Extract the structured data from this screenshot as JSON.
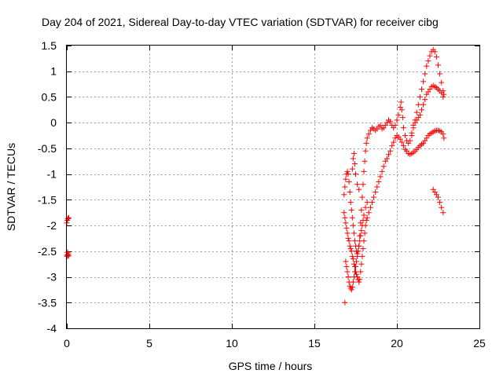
{
  "chart_data": {
    "type": "scatter",
    "title": "Day 204 of 2021, Sidereal Day-to-day VTEC variation (SDTVAR) for receiver cibg",
    "xlabel": "GPS time / hours",
    "ylabel": "SDTVAR / TECUs",
    "xlim": [
      0,
      25
    ],
    "ylim": [
      -4,
      1.5
    ],
    "xticks": [
      0,
      5,
      10,
      15,
      20,
      25
    ],
    "yticks": [
      -4,
      -3.5,
      -3,
      -2.5,
      -2,
      -1.5,
      -1,
      -0.5,
      0,
      0.5,
      1,
      1.5
    ],
    "xtick_labels": [
      "0",
      "5",
      "10",
      "15",
      "20",
      "25"
    ],
    "ytick_labels": [
      "-4",
      "-3.5",
      "-3",
      "-2.5",
      "-2",
      "-1.5",
      "-1",
      "-0.5",
      "0",
      "0.5",
      "1",
      "1.5"
    ],
    "grid": true,
    "legend": "none",
    "marker": "+",
    "color": "#ff0000",
    "series": [
      {
        "points": [
          [
            0.0,
            -1.95
          ],
          [
            0.03,
            -1.9
          ],
          [
            0.06,
            -1.87
          ],
          [
            0.09,
            -1.86
          ],
          [
            0.12,
            -1.85
          ],
          [
            0.0,
            -2.58
          ],
          [
            0.03,
            -2.6
          ],
          [
            0.06,
            -2.57
          ],
          [
            0.09,
            -2.55
          ],
          [
            0.12,
            -2.59
          ],
          [
            0.04,
            -2.52
          ],
          [
            16.85,
            -3.5
          ],
          [
            16.8,
            -1.75
          ],
          [
            16.85,
            -1.85
          ],
          [
            16.9,
            -1.95
          ],
          [
            16.95,
            -2.05
          ],
          [
            17.0,
            -2.15
          ],
          [
            17.05,
            -2.25
          ],
          [
            17.1,
            -2.3
          ],
          [
            17.15,
            -2.4
          ],
          [
            17.2,
            -2.45
          ],
          [
            17.25,
            -2.5
          ],
          [
            17.3,
            -2.6
          ],
          [
            17.35,
            -2.65
          ],
          [
            17.4,
            -2.75
          ],
          [
            17.45,
            -2.8
          ],
          [
            17.5,
            -2.9
          ],
          [
            17.55,
            -2.95
          ],
          [
            17.6,
            -3.0
          ],
          [
            17.65,
            -3.05
          ],
          [
            17.7,
            -3.1
          ],
          [
            17.75,
            -3.05
          ],
          [
            17.8,
            -2.9
          ],
          [
            17.85,
            -2.75
          ],
          [
            17.9,
            -2.6
          ],
          [
            17.95,
            -2.45
          ],
          [
            18.0,
            -2.3
          ],
          [
            18.05,
            -2.15
          ],
          [
            18.1,
            -2.0
          ],
          [
            18.15,
            -1.9
          ],
          [
            18.2,
            -1.85
          ],
          [
            18.3,
            -1.75
          ],
          [
            18.4,
            -1.65
          ],
          [
            18.5,
            -1.55
          ],
          [
            18.6,
            -1.45
          ],
          [
            18.7,
            -1.35
          ],
          [
            18.8,
            -1.25
          ],
          [
            18.9,
            -1.15
          ],
          [
            19.0,
            -1.05
          ],
          [
            19.1,
            -0.95
          ],
          [
            19.2,
            -0.85
          ],
          [
            19.3,
            -0.75
          ],
          [
            19.4,
            -0.7
          ],
          [
            19.5,
            -0.62
          ],
          [
            19.6,
            -0.55
          ],
          [
            19.7,
            -0.45
          ],
          [
            19.8,
            -0.38
          ],
          [
            19.9,
            -0.3
          ],
          [
            20.0,
            -0.25
          ],
          [
            20.1,
            -0.28
          ],
          [
            20.2,
            -0.32
          ],
          [
            20.3,
            -0.38
          ],
          [
            20.4,
            -0.45
          ],
          [
            20.5,
            -0.52
          ],
          [
            20.6,
            -0.55
          ],
          [
            20.7,
            -0.6
          ],
          [
            20.8,
            -0.62
          ],
          [
            20.9,
            -0.6
          ],
          [
            21.0,
            -0.58
          ],
          [
            21.1,
            -0.55
          ],
          [
            21.2,
            -0.52
          ],
          [
            21.3,
            -0.48
          ],
          [
            21.4,
            -0.45
          ],
          [
            21.5,
            -0.42
          ],
          [
            21.6,
            -0.4
          ],
          [
            21.7,
            -0.35
          ],
          [
            21.8,
            -0.3
          ],
          [
            21.9,
            -0.25
          ],
          [
            22.0,
            -0.22
          ],
          [
            22.1,
            -0.2
          ],
          [
            22.2,
            -0.18
          ],
          [
            22.3,
            -0.16
          ],
          [
            22.4,
            -0.15
          ],
          [
            22.5,
            -0.15
          ],
          [
            22.6,
            -0.16
          ],
          [
            22.7,
            -0.18
          ],
          [
            22.8,
            -0.22
          ],
          [
            22.85,
            -0.3
          ],
          [
            16.9,
            -2.7
          ],
          [
            16.95,
            -2.8
          ],
          [
            17.0,
            -2.9
          ],
          [
            17.05,
            -3.0
          ],
          [
            17.1,
            -3.1
          ],
          [
            17.15,
            -3.18
          ],
          [
            17.2,
            -3.22
          ],
          [
            17.25,
            -3.25
          ],
          [
            17.3,
            -3.2
          ],
          [
            17.35,
            -3.1
          ],
          [
            17.4,
            -3.0
          ],
          [
            17.45,
            -2.9
          ],
          [
            17.5,
            -2.8
          ],
          [
            17.55,
            -2.7
          ],
          [
            17.6,
            -2.6
          ],
          [
            17.65,
            -2.5
          ],
          [
            17.7,
            -2.4
          ],
          [
            17.75,
            -2.3
          ],
          [
            17.8,
            -2.2
          ],
          [
            17.85,
            -2.1
          ],
          [
            17.9,
            -2.0
          ],
          [
            17.95,
            -1.9
          ],
          [
            18.0,
            -1.8
          ],
          [
            18.1,
            -1.65
          ],
          [
            18.2,
            -1.55
          ],
          [
            16.8,
            -1.4
          ],
          [
            16.85,
            -1.25
          ],
          [
            16.9,
            -1.1
          ],
          [
            16.95,
            -1.0
          ],
          [
            17.0,
            -0.95
          ],
          [
            17.05,
            -1.0
          ],
          [
            17.1,
            -1.15
          ],
          [
            17.15,
            -1.35
          ],
          [
            17.2,
            -1.55
          ],
          [
            17.25,
            -1.7
          ],
          [
            17.3,
            -1.85
          ],
          [
            17.35,
            -2.0
          ],
          [
            17.4,
            -2.15
          ],
          [
            17.45,
            -2.3
          ],
          [
            17.5,
            -2.4
          ],
          [
            17.55,
            -2.5
          ],
          [
            17.6,
            -2.55
          ],
          [
            17.65,
            -2.5
          ],
          [
            17.7,
            -2.4
          ],
          [
            17.75,
            -2.2
          ],
          [
            17.8,
            -1.95
          ],
          [
            17.85,
            -1.7
          ],
          [
            17.9,
            -1.45
          ],
          [
            17.95,
            -1.2
          ],
          [
            18.0,
            -0.95
          ],
          [
            18.05,
            -0.75
          ],
          [
            18.1,
            -0.55
          ],
          [
            18.15,
            -0.4
          ],
          [
            18.2,
            -0.3
          ],
          [
            18.3,
            -0.22
          ],
          [
            18.4,
            -0.15
          ],
          [
            18.5,
            -0.1
          ],
          [
            18.6,
            -0.12
          ],
          [
            18.7,
            -0.15
          ],
          [
            18.8,
            -0.12
          ],
          [
            18.9,
            -0.08
          ],
          [
            19.0,
            -0.05
          ],
          [
            19.1,
            -0.12
          ],
          [
            19.2,
            -0.1
          ],
          [
            19.3,
            -0.05
          ],
          [
            19.4,
            0.0
          ],
          [
            19.5,
            0.05
          ],
          [
            19.6,
            0.02
          ],
          [
            19.7,
            -0.05
          ],
          [
            19.8,
            -0.1
          ],
          [
            19.9,
            -0.05
          ],
          [
            20.0,
            0.05
          ],
          [
            20.1,
            0.15
          ],
          [
            20.2,
            0.3
          ],
          [
            20.25,
            0.4
          ],
          [
            20.3,
            0.25
          ],
          [
            20.35,
            0.1
          ],
          [
            20.4,
            -0.1
          ],
          [
            20.5,
            -0.25
          ],
          [
            20.6,
            -0.35
          ],
          [
            20.7,
            -0.4
          ],
          [
            20.8,
            -0.35
          ],
          [
            20.9,
            -0.25
          ],
          [
            21.0,
            -0.1
          ],
          [
            21.1,
            0.05
          ],
          [
            21.2,
            0.2
          ],
          [
            21.3,
            0.35
          ],
          [
            21.4,
            0.5
          ],
          [
            21.5,
            0.65
          ],
          [
            21.6,
            0.8
          ],
          [
            21.7,
            0.95
          ],
          [
            21.8,
            1.1
          ],
          [
            21.9,
            1.2
          ],
          [
            22.0,
            1.3
          ],
          [
            22.1,
            1.38
          ],
          [
            22.2,
            1.42
          ],
          [
            22.3,
            1.38
          ],
          [
            22.4,
            1.28
          ],
          [
            22.5,
            1.12
          ],
          [
            22.6,
            0.95
          ],
          [
            22.7,
            0.78
          ],
          [
            22.8,
            0.62
          ],
          [
            22.85,
            0.55
          ],
          [
            17.3,
            -0.9
          ],
          [
            17.35,
            -0.7
          ],
          [
            17.4,
            -0.6
          ],
          [
            17.45,
            -0.8
          ],
          [
            17.5,
            -1.0
          ],
          [
            17.6,
            -1.2
          ],
          [
            17.7,
            -1.3
          ],
          [
            20.9,
            -0.2
          ],
          [
            21.0,
            -0.05
          ],
          [
            21.1,
            0.0
          ],
          [
            21.2,
            0.05
          ],
          [
            21.3,
            0.1
          ],
          [
            21.4,
            0.15
          ],
          [
            21.5,
            0.25
          ],
          [
            21.6,
            0.35
          ],
          [
            21.7,
            0.45
          ],
          [
            21.8,
            0.55
          ],
          [
            21.9,
            0.6
          ],
          [
            22.0,
            0.65
          ],
          [
            22.1,
            0.7
          ],
          [
            22.2,
            0.72
          ],
          [
            22.3,
            0.7
          ],
          [
            22.4,
            0.68
          ],
          [
            22.5,
            0.65
          ],
          [
            22.6,
            0.62
          ],
          [
            22.7,
            0.58
          ],
          [
            22.8,
            0.5
          ],
          [
            22.2,
            -1.3
          ],
          [
            22.3,
            -1.35
          ],
          [
            22.4,
            -1.4
          ],
          [
            22.5,
            -1.45
          ],
          [
            22.6,
            -1.55
          ],
          [
            22.7,
            -1.65
          ],
          [
            22.8,
            -1.75
          ]
        ]
      }
    ]
  }
}
